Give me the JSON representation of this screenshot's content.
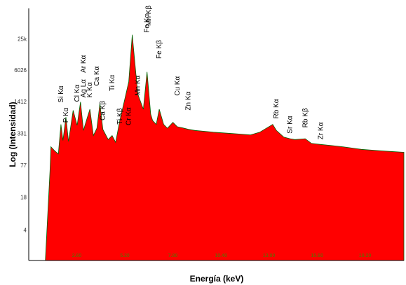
{
  "chart_data": {
    "type": "area",
    "title": "",
    "xlabel": "Energía (keV)",
    "ylabel": "Log (Intensidad)",
    "yscale": "log",
    "ytick_labels": [
      "4",
      "18",
      "77",
      "331",
      "1412",
      "6026",
      "25k"
    ],
    "ytick_values": [
      4,
      18,
      77,
      331,
      1412,
      6026,
      25000
    ],
    "xtick_labels": [
      "2.60",
      "5.20",
      "7.80",
      "10.40",
      "13.00",
      "15.60",
      "18.20"
    ],
    "xtick_values": [
      2.6,
      5.2,
      7.8,
      10.4,
      13.0,
      15.6,
      18.2
    ],
    "xlim": [
      0,
      20.3
    ],
    "ylim": [
      1,
      100000
    ],
    "fill_color": "#ff0000",
    "edge_color": "#006400",
    "grid": false,
    "legend": "none",
    "x": [
      0.9,
      1.15,
      1.2,
      1.4,
      1.6,
      1.74,
      1.85,
      2.01,
      2.15,
      2.4,
      2.62,
      2.8,
      2.96,
      3.15,
      3.31,
      3.5,
      3.69,
      3.85,
      4.01,
      4.3,
      4.51,
      4.7,
      4.93,
      5.2,
      5.41,
      5.6,
      5.9,
      6.2,
      6.4,
      6.6,
      6.7,
      6.9,
      7.06,
      7.3,
      7.5,
      7.8,
      8.04,
      8.3,
      8.64,
      9.0,
      10.0,
      11.0,
      12.0,
      12.5,
      13.2,
      13.4,
      13.8,
      14.14,
      14.4,
      14.96,
      15.3,
      15.8,
      16.4,
      17.0,
      18.0,
      19.0,
      20.3
    ],
    "values": [
      1,
      60,
      180,
      150,
      130,
      500,
      240,
      700,
      230,
      950,
      480,
      1400,
      380,
      650,
      1000,
      300,
      420,
      1300,
      400,
      250,
      300,
      220,
      600,
      1600,
      3500,
      30000,
      2000,
      1000,
      5500,
      800,
      600,
      500,
      1000,
      500,
      420,
      550,
      450,
      430,
      400,
      380,
      350,
      330,
      310,
      350,
      500,
      380,
      280,
      260,
      250,
      260,
      210,
      200,
      190,
      180,
      160,
      150,
      140
    ],
    "peak_labels": [
      {
        "text": "Si Kα",
        "x": 1.74,
        "y": 1350
      },
      {
        "text": "P Kα",
        "x": 2.01,
        "y": 540
      },
      {
        "text": "Cl Kα",
        "x": 2.62,
        "y": 1400
      },
      {
        "text": "Ag Lα",
        "x": 2.96,
        "y": 1700
      },
      {
        "text": "Ar Kα",
        "x": 2.96,
        "y": 5300
      },
      {
        "text": "K Kα",
        "x": 3.31,
        "y": 1700
      },
      {
        "text": "Ca Kα",
        "x": 3.69,
        "y": 2900
      },
      {
        "text": "Ca Kβ",
        "x": 4.01,
        "y": 600
      },
      {
        "text": "Ti Kα",
        "x": 4.51,
        "y": 2300
      },
      {
        "text": "Ti Kβ",
        "x": 4.93,
        "y": 500
      },
      {
        "text": "Cr Kα",
        "x": 5.41,
        "y": 480
      },
      {
        "text": "Mn Kα",
        "x": 5.9,
        "y": 1850
      },
      {
        "text": "Fe Kα",
        "x": 6.4,
        "y": 33000
      },
      {
        "text": "Mn Kβ",
        "x": 6.49,
        "y": 45000
      },
      {
        "text": "Fe Kβ",
        "x": 7.06,
        "y": 10000
      },
      {
        "text": "Cu Kα",
        "x": 8.04,
        "y": 1850
      },
      {
        "text": "Zn Kα",
        "x": 8.64,
        "y": 950
      },
      {
        "text": "Rb Kα",
        "x": 13.4,
        "y": 650
      },
      {
        "text": "Sr Kα",
        "x": 14.14,
        "y": 330
      },
      {
        "text": "Rb Kβ",
        "x": 14.96,
        "y": 430
      },
      {
        "text": "Zr Kα",
        "x": 15.8,
        "y": 250
      }
    ]
  }
}
